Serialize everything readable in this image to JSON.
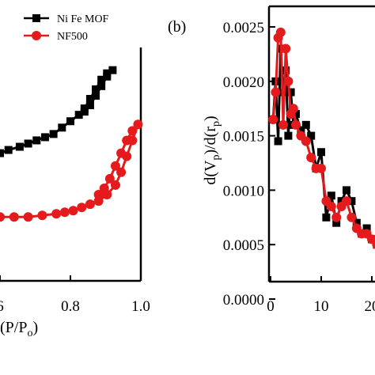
{
  "chart_data": [
    {
      "type": "line",
      "panel": "a",
      "xlabel_visible": "(P/Po)",
      "xlim": [
        0.5,
        1.0
      ],
      "x_ticks": [
        "6",
        "0.8",
        "1.0"
      ],
      "legend": {
        "placement": "top-right",
        "entries": [
          {
            "name": "Ni Fe MOF",
            "color": "#000000",
            "marker": "square"
          },
          {
            "name": "NF500",
            "color": "#e41a1c",
            "marker": "circle"
          }
        ]
      },
      "series": [
        {
          "name": "Ni Fe MOF",
          "color": "#000000",
          "marker": "square",
          "x": [
            0.5,
            0.53,
            0.57,
            0.6,
            0.63,
            0.66,
            0.69,
            0.72,
            0.75,
            0.78,
            0.8,
            0.82,
            0.84,
            0.86,
            0.88,
            0.9,
            0.88,
            0.86,
            0.84,
            0.82,
            0.8
          ],
          "y": [
            80,
            81,
            82,
            83,
            84,
            85,
            86,
            88,
            90,
            92,
            94,
            97,
            100,
            103,
            105,
            106,
            104,
            101,
            98,
            95,
            93
          ]
        },
        {
          "name": "NF500",
          "color": "#e41a1c",
          "marker": "circle",
          "x": [
            0.5,
            0.55,
            0.6,
            0.65,
            0.7,
            0.73,
            0.76,
            0.79,
            0.82,
            0.85,
            0.88,
            0.91,
            0.93,
            0.95,
            0.97,
            0.99,
            0.97,
            0.95,
            0.93,
            0.91,
            0.89,
            0.87,
            0.85
          ],
          "y": [
            60,
            60,
            60,
            60.5,
            61,
            61.5,
            62,
            63,
            64,
            65,
            67,
            70,
            74,
            79,
            84,
            89,
            87,
            84,
            80,
            76,
            72,
            69,
            67
          ]
        }
      ]
    },
    {
      "type": "line",
      "panel": "b",
      "panel_label": "(b)",
      "ylabel": "d(Vp)/d(rp)",
      "ylim": [
        0.0,
        0.0025
      ],
      "xlim": [
        0,
        22
      ],
      "y_ticks": [
        "0.0025",
        "0.0020",
        "0.0015",
        "0.0010",
        "0.0005",
        "0.0000"
      ],
      "x_ticks": [
        "0",
        "10",
        "20"
      ],
      "series": [
        {
          "name": "Ni Fe MOF",
          "color": "#000000",
          "marker": "square",
          "x": [
            0.5,
            1.0,
            1.5,
            2.0,
            2.5,
            3.0,
            3.5,
            4.0,
            4.5,
            5.0,
            6.0,
            7.0,
            8.0,
            9.0,
            10.0,
            11.0,
            12.0,
            13.0,
            14.0,
            15.0,
            16.0,
            17.0,
            18.0,
            19.0,
            20.0,
            21.0,
            22.0
          ],
          "y": [
            0.00165,
            0.002,
            0.00145,
            0.0023,
            0.0019,
            0.0021,
            0.0015,
            0.0019,
            0.0016,
            0.0017,
            0.00155,
            0.0016,
            0.0015,
            0.0012,
            0.00135,
            0.00075,
            0.00095,
            0.0007,
            0.0009,
            0.001,
            0.0009,
            0.0007,
            0.0006,
            0.00065,
            0.00055,
            0.0005,
            0.00045
          ]
        },
        {
          "name": "NF500",
          "color": "#e41a1c",
          "marker": "circle",
          "x": [
            0.5,
            1.0,
            1.5,
            2.0,
            2.5,
            3.0,
            3.5,
            4.0,
            4.5,
            5.0,
            6.0,
            7.0,
            8.0,
            9.0,
            10.0,
            11.0,
            12.0,
            13.0,
            14.0,
            15.0,
            16.0,
            17.0,
            18.0,
            19.0,
            20.0,
            21.0,
            22.0
          ],
          "y": [
            0.00165,
            0.0019,
            0.0024,
            0.00245,
            0.0016,
            0.0023,
            0.002,
            0.0017,
            0.00175,
            0.0016,
            0.0015,
            0.00145,
            0.0013,
            0.0012,
            0.0012,
            0.0009,
            0.00085,
            0.00075,
            0.00085,
            0.0009,
            0.00075,
            0.00065,
            0.0006,
            0.0006,
            0.00055,
            0.0005,
            0.0005
          ]
        }
      ]
    }
  ]
}
